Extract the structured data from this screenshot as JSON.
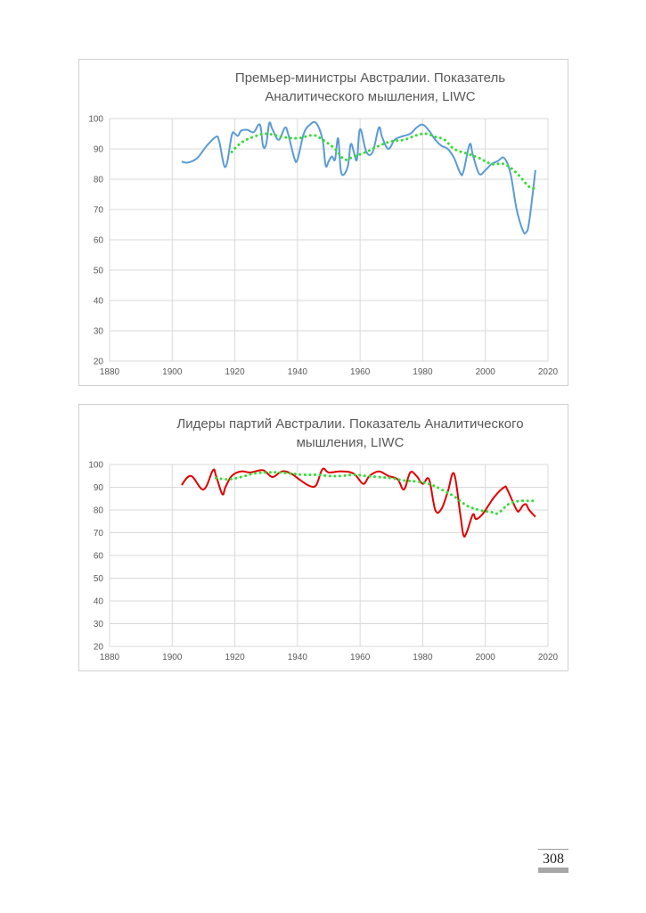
{
  "page": {
    "number": "308"
  },
  "chart_data": [
    {
      "type": "line",
      "title": "Премьер-министры Австралии. Показатель Аналитического мышления, LIWC",
      "xlabel": "",
      "ylabel": "",
      "xlim": [
        1880,
        2020
      ],
      "ylim": [
        20,
        100
      ],
      "xticks": [
        "1880",
        "1900",
        "1920",
        "1940",
        "1960",
        "1980",
        "2000",
        "2020"
      ],
      "yticks": [
        "20",
        "30",
        "40",
        "50",
        "60",
        "70",
        "80",
        "90",
        "100"
      ],
      "grid": true,
      "legend": "none",
      "series": [
        {
          "style": "solid",
          "color": "#5b9bd5",
          "points": [
            [
              1903,
              85.8
            ],
            [
              1905,
              85.5
            ],
            [
              1908,
              87
            ],
            [
              1911,
              91
            ],
            [
              1914,
              94
            ],
            [
              1915,
              92.5
            ],
            [
              1917,
              84
            ],
            [
              1919,
              94.5
            ],
            [
              1920,
              95
            ],
            [
              1921,
              94.3
            ],
            [
              1922,
              96
            ],
            [
              1924,
              96.3
            ],
            [
              1926,
              95.5
            ],
            [
              1928,
              98
            ],
            [
              1929,
              91
            ],
            [
              1930,
              91.5
            ],
            [
              1931,
              98.5
            ],
            [
              1932,
              96.5
            ],
            [
              1934,
              93
            ],
            [
              1936,
              97
            ],
            [
              1937,
              95
            ],
            [
              1939,
              87
            ],
            [
              1940,
              86.5
            ],
            [
              1942,
              95
            ],
            [
              1944,
              98
            ],
            [
              1946,
              98.5
            ],
            [
              1948,
              93
            ],
            [
              1949,
              84.5
            ],
            [
              1950,
              86
            ],
            [
              1951,
              87.5
            ],
            [
              1952,
              86.5
            ],
            [
              1953,
              93.5
            ],
            [
              1954,
              82
            ],
            [
              1956,
              84
            ],
            [
              1957,
              91.5
            ],
            [
              1958,
              89
            ],
            [
              1959,
              86.5
            ],
            [
              1960,
              96.5
            ],
            [
              1962,
              89
            ],
            [
              1964,
              89
            ],
            [
              1966,
              97
            ],
            [
              1967,
              94
            ],
            [
              1969,
              90
            ],
            [
              1971,
              93
            ],
            [
              1973,
              94
            ],
            [
              1976,
              95
            ],
            [
              1978,
              97
            ],
            [
              1980,
              98
            ],
            [
              1982,
              96
            ],
            [
              1984,
              93
            ],
            [
              1986,
              91
            ],
            [
              1988,
              90
            ],
            [
              1990,
              87
            ],
            [
              1992,
              82
            ],
            [
              1993,
              82.5
            ],
            [
              1995,
              91.5
            ],
            [
              1996,
              88
            ],
            [
              1998,
              81.8
            ],
            [
              2000,
              83
            ],
            [
              2002,
              85
            ],
            [
              2004,
              86
            ],
            [
              2006,
              87
            ],
            [
              2008,
              82
            ],
            [
              2010,
              70
            ],
            [
              2012,
              63
            ],
            [
              2013,
              62.5
            ],
            [
              2014,
              66
            ],
            [
              2016,
              83
            ]
          ]
        },
        {
          "style": "dotted",
          "color": "#33dd33",
          "points": [
            [
              1919,
              89
            ],
            [
              1922,
              92
            ],
            [
              1926,
              94
            ],
            [
              1930,
              95
            ],
            [
              1935,
              94
            ],
            [
              1940,
              93.5
            ],
            [
              1945,
              94.5
            ],
            [
              1948,
              93
            ],
            [
              1952,
              90
            ],
            [
              1955,
              86.5
            ],
            [
              1958,
              87.5
            ],
            [
              1962,
              89
            ],
            [
              1966,
              91
            ],
            [
              1970,
              92.5
            ],
            [
              1974,
              93
            ],
            [
              1978,
              94.5
            ],
            [
              1981,
              95
            ],
            [
              1984,
              94
            ],
            [
              1987,
              93
            ],
            [
              1990,
              90
            ],
            [
              1994,
              88.5
            ],
            [
              1998,
              87
            ],
            [
              2002,
              85
            ],
            [
              2006,
              85
            ],
            [
              2010,
              82
            ],
            [
              2014,
              77.5
            ],
            [
              2016,
              77
            ]
          ]
        }
      ]
    },
    {
      "type": "line",
      "title": "Лидеры партий Австралии. Показатель Аналитического мышления, LIWC",
      "xlabel": "",
      "ylabel": "",
      "xlim": [
        1880,
        2020
      ],
      "ylim": [
        20,
        100
      ],
      "xticks": [
        "1880",
        "1900",
        "1920",
        "1940",
        "1960",
        "1980",
        "2000",
        "2020"
      ],
      "yticks": [
        "20",
        "30",
        "40",
        "50",
        "60",
        "70",
        "80",
        "90",
        "100"
      ],
      "grid": true,
      "legend": "none",
      "series": [
        {
          "style": "solid",
          "color": "#e00000",
          "points": [
            [
              1903,
              91
            ],
            [
              1906,
              95
            ],
            [
              1910,
              89
            ],
            [
              1913,
              97.5
            ],
            [
              1914,
              95
            ],
            [
              1916,
              87
            ],
            [
              1917,
              90
            ],
            [
              1919,
              95
            ],
            [
              1922,
              97
            ],
            [
              1925,
              96.5
            ],
            [
              1929,
              97.5
            ],
            [
              1932,
              94.5
            ],
            [
              1935,
              97
            ],
            [
              1938,
              96
            ],
            [
              1941,
              93
            ],
            [
              1944,
              90.5
            ],
            [
              1946,
              91
            ],
            [
              1948,
              98
            ],
            [
              1950,
              96.5
            ],
            [
              1954,
              97
            ],
            [
              1958,
              96
            ],
            [
              1961,
              91.5
            ],
            [
              1963,
              95
            ],
            [
              1966,
              97
            ],
            [
              1969,
              95
            ],
            [
              1972,
              93.5
            ],
            [
              1974,
              89
            ],
            [
              1976,
              96.5
            ],
            [
              1978,
              95
            ],
            [
              1980,
              91.5
            ],
            [
              1982,
              93.5
            ],
            [
              1984,
              80
            ],
            [
              1986,
              80.5
            ],
            [
              1988,
              88
            ],
            [
              1990,
              96
            ],
            [
              1992,
              78
            ],
            [
              1993,
              69
            ],
            [
              1994,
              70
            ],
            [
              1996,
              78
            ],
            [
              1997,
              76
            ],
            [
              1999,
              78
            ],
            [
              2001,
              82
            ],
            [
              2003,
              86
            ],
            [
              2006,
              90
            ],
            [
              2007,
              89
            ],
            [
              2010,
              80
            ],
            [
              2011,
              80
            ],
            [
              2012,
              82
            ],
            [
              2013,
              82.5
            ],
            [
              2014,
              80
            ],
            [
              2016,
              77
            ]
          ]
        },
        {
          "style": "dotted",
          "color": "#33dd33",
          "points": [
            [
              1914,
              94
            ],
            [
              1918,
              93.5
            ],
            [
              1922,
              94.5
            ],
            [
              1926,
              96
            ],
            [
              1930,
              96.5
            ],
            [
              1934,
              96.5
            ],
            [
              1938,
              96
            ],
            [
              1942,
              95.5
            ],
            [
              1946,
              95.5
            ],
            [
              1950,
              95
            ],
            [
              1954,
              95
            ],
            [
              1958,
              95.5
            ],
            [
              1962,
              95
            ],
            [
              1966,
              94.5
            ],
            [
              1970,
              94
            ],
            [
              1974,
              93
            ],
            [
              1978,
              92.5
            ],
            [
              1982,
              91.5
            ],
            [
              1986,
              89
            ],
            [
              1990,
              86
            ],
            [
              1994,
              82
            ],
            [
              1998,
              80
            ],
            [
              2002,
              79
            ],
            [
              2004,
              78.5
            ],
            [
              2006,
              81
            ],
            [
              2008,
              83
            ],
            [
              2011,
              84
            ],
            [
              2014,
              84
            ],
            [
              2016,
              84
            ]
          ]
        }
      ]
    }
  ]
}
